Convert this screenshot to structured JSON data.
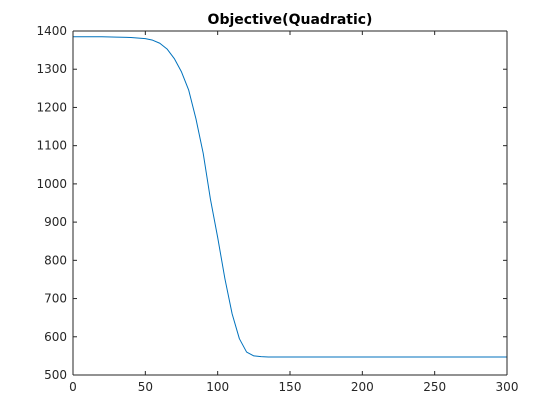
{
  "chart_data": {
    "type": "line",
    "title": "Objective(Quadratic)",
    "xlabel": "",
    "ylabel": "",
    "xlim": [
      0,
      300
    ],
    "ylim": [
      500,
      1400
    ],
    "x_ticks": [
      0,
      50,
      100,
      150,
      200,
      250,
      300
    ],
    "x_tick_labels": [
      "0",
      "50",
      "100",
      "150",
      "200",
      "250",
      "300"
    ],
    "y_ticks": [
      500,
      600,
      700,
      800,
      900,
      1000,
      1100,
      1200,
      1300,
      1400
    ],
    "y_tick_labels": [
      "500",
      "600",
      "700",
      "800",
      "900",
      "1000",
      "1100",
      "1200",
      "1300",
      "1400"
    ],
    "grid": false,
    "box": true,
    "series": [
      {
        "color": "#0072BD",
        "x": [
          0,
          10,
          20,
          30,
          40,
          50,
          55,
          60,
          65,
          70,
          75,
          80,
          85,
          90,
          95,
          100,
          105,
          110,
          115,
          120,
          125,
          130,
          135,
          140,
          150,
          175,
          200,
          250,
          300
        ],
        "y": [
          1385,
          1385,
          1385,
          1384,
          1383,
          1380,
          1376,
          1368,
          1353,
          1328,
          1293,
          1245,
          1170,
          1080,
          960,
          860,
          752,
          660,
          595,
          560,
          550,
          548,
          547,
          547,
          547,
          547,
          547,
          547,
          547
        ]
      }
    ]
  }
}
